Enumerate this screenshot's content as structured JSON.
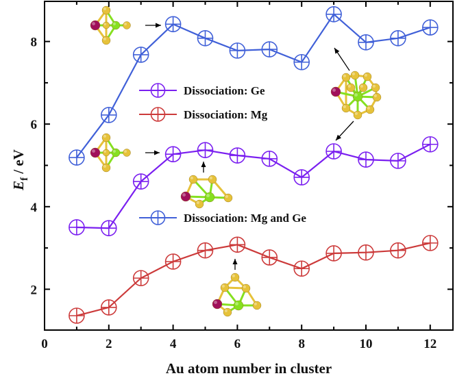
{
  "chart_data": {
    "type": "line",
    "title": "",
    "xlabel": "Au atom number in cluster",
    "ylabel": "E_f / eV",
    "ylabel_main": "E",
    "ylabel_sub": "f",
    "ylabel_unit": " / eV",
    "xlim": [
      0,
      12.7
    ],
    "ylim": [
      1.0,
      9.0
    ],
    "xticks": [
      0,
      2,
      4,
      6,
      8,
      10,
      12
    ],
    "yticks": [
      2,
      4,
      6,
      8
    ],
    "grid": false,
    "marker": "circle-plus",
    "x": [
      1,
      2,
      3,
      4,
      5,
      6,
      7,
      8,
      9,
      10,
      11,
      12
    ],
    "series": [
      {
        "name": "Dissociation: Mg  and Ge",
        "color": "#4060d8",
        "values": [
          5.19,
          6.22,
          7.68,
          8.42,
          8.08,
          7.78,
          7.81,
          7.5,
          8.66,
          7.98,
          8.08,
          8.34
        ]
      },
      {
        "name": "Dissociation: Ge",
        "color": "#7a1ff0",
        "values": [
          3.5,
          3.48,
          4.61,
          5.27,
          5.37,
          5.24,
          5.16,
          4.71,
          5.34,
          5.14,
          5.11,
          5.51
        ]
      },
      {
        "name": "Dissociation: Mg",
        "color": "#cc3a3a",
        "values": [
          1.36,
          1.56,
          2.27,
          2.67,
          2.94,
          3.08,
          2.77,
          2.5,
          2.87,
          2.89,
          2.94,
          3.12
        ]
      }
    ],
    "legend": [
      {
        "label": "Dissociation: Ge",
        "color": "#7a1ff0",
        "position": "upper-middle"
      },
      {
        "label": "Dissociation: Mg",
        "color": "#cc3a3a",
        "position": "upper-middle"
      },
      {
        "label": "Dissociation: Mg  and Ge",
        "color": "#4060d8",
        "position": "middle"
      }
    ],
    "annotations": [
      {
        "type": "cluster-structure-inset",
        "points_to": {
          "series": "Dissociation: Mg  and Ge",
          "x": 4
        }
      },
      {
        "type": "cluster-structure-inset",
        "points_to": {
          "series": "Dissociation: Mg  and Ge",
          "x": 9
        }
      },
      {
        "type": "cluster-structure-inset",
        "points_to": {
          "series": "Dissociation: Ge",
          "x": 4
        }
      },
      {
        "type": "cluster-structure-inset",
        "points_to": {
          "series": "Dissociation: Ge",
          "x": 5
        }
      },
      {
        "type": "cluster-structure-inset",
        "points_to": {
          "series": "Dissociation: Ge",
          "x": 9
        }
      },
      {
        "type": "cluster-structure-inset",
        "points_to": {
          "series": "Dissociation: Mg",
          "x": 6
        }
      }
    ]
  },
  "colors": {
    "au": "#e6c23a",
    "mg": "#a0105a",
    "ge": "#86e020",
    "axis": "#000000"
  }
}
